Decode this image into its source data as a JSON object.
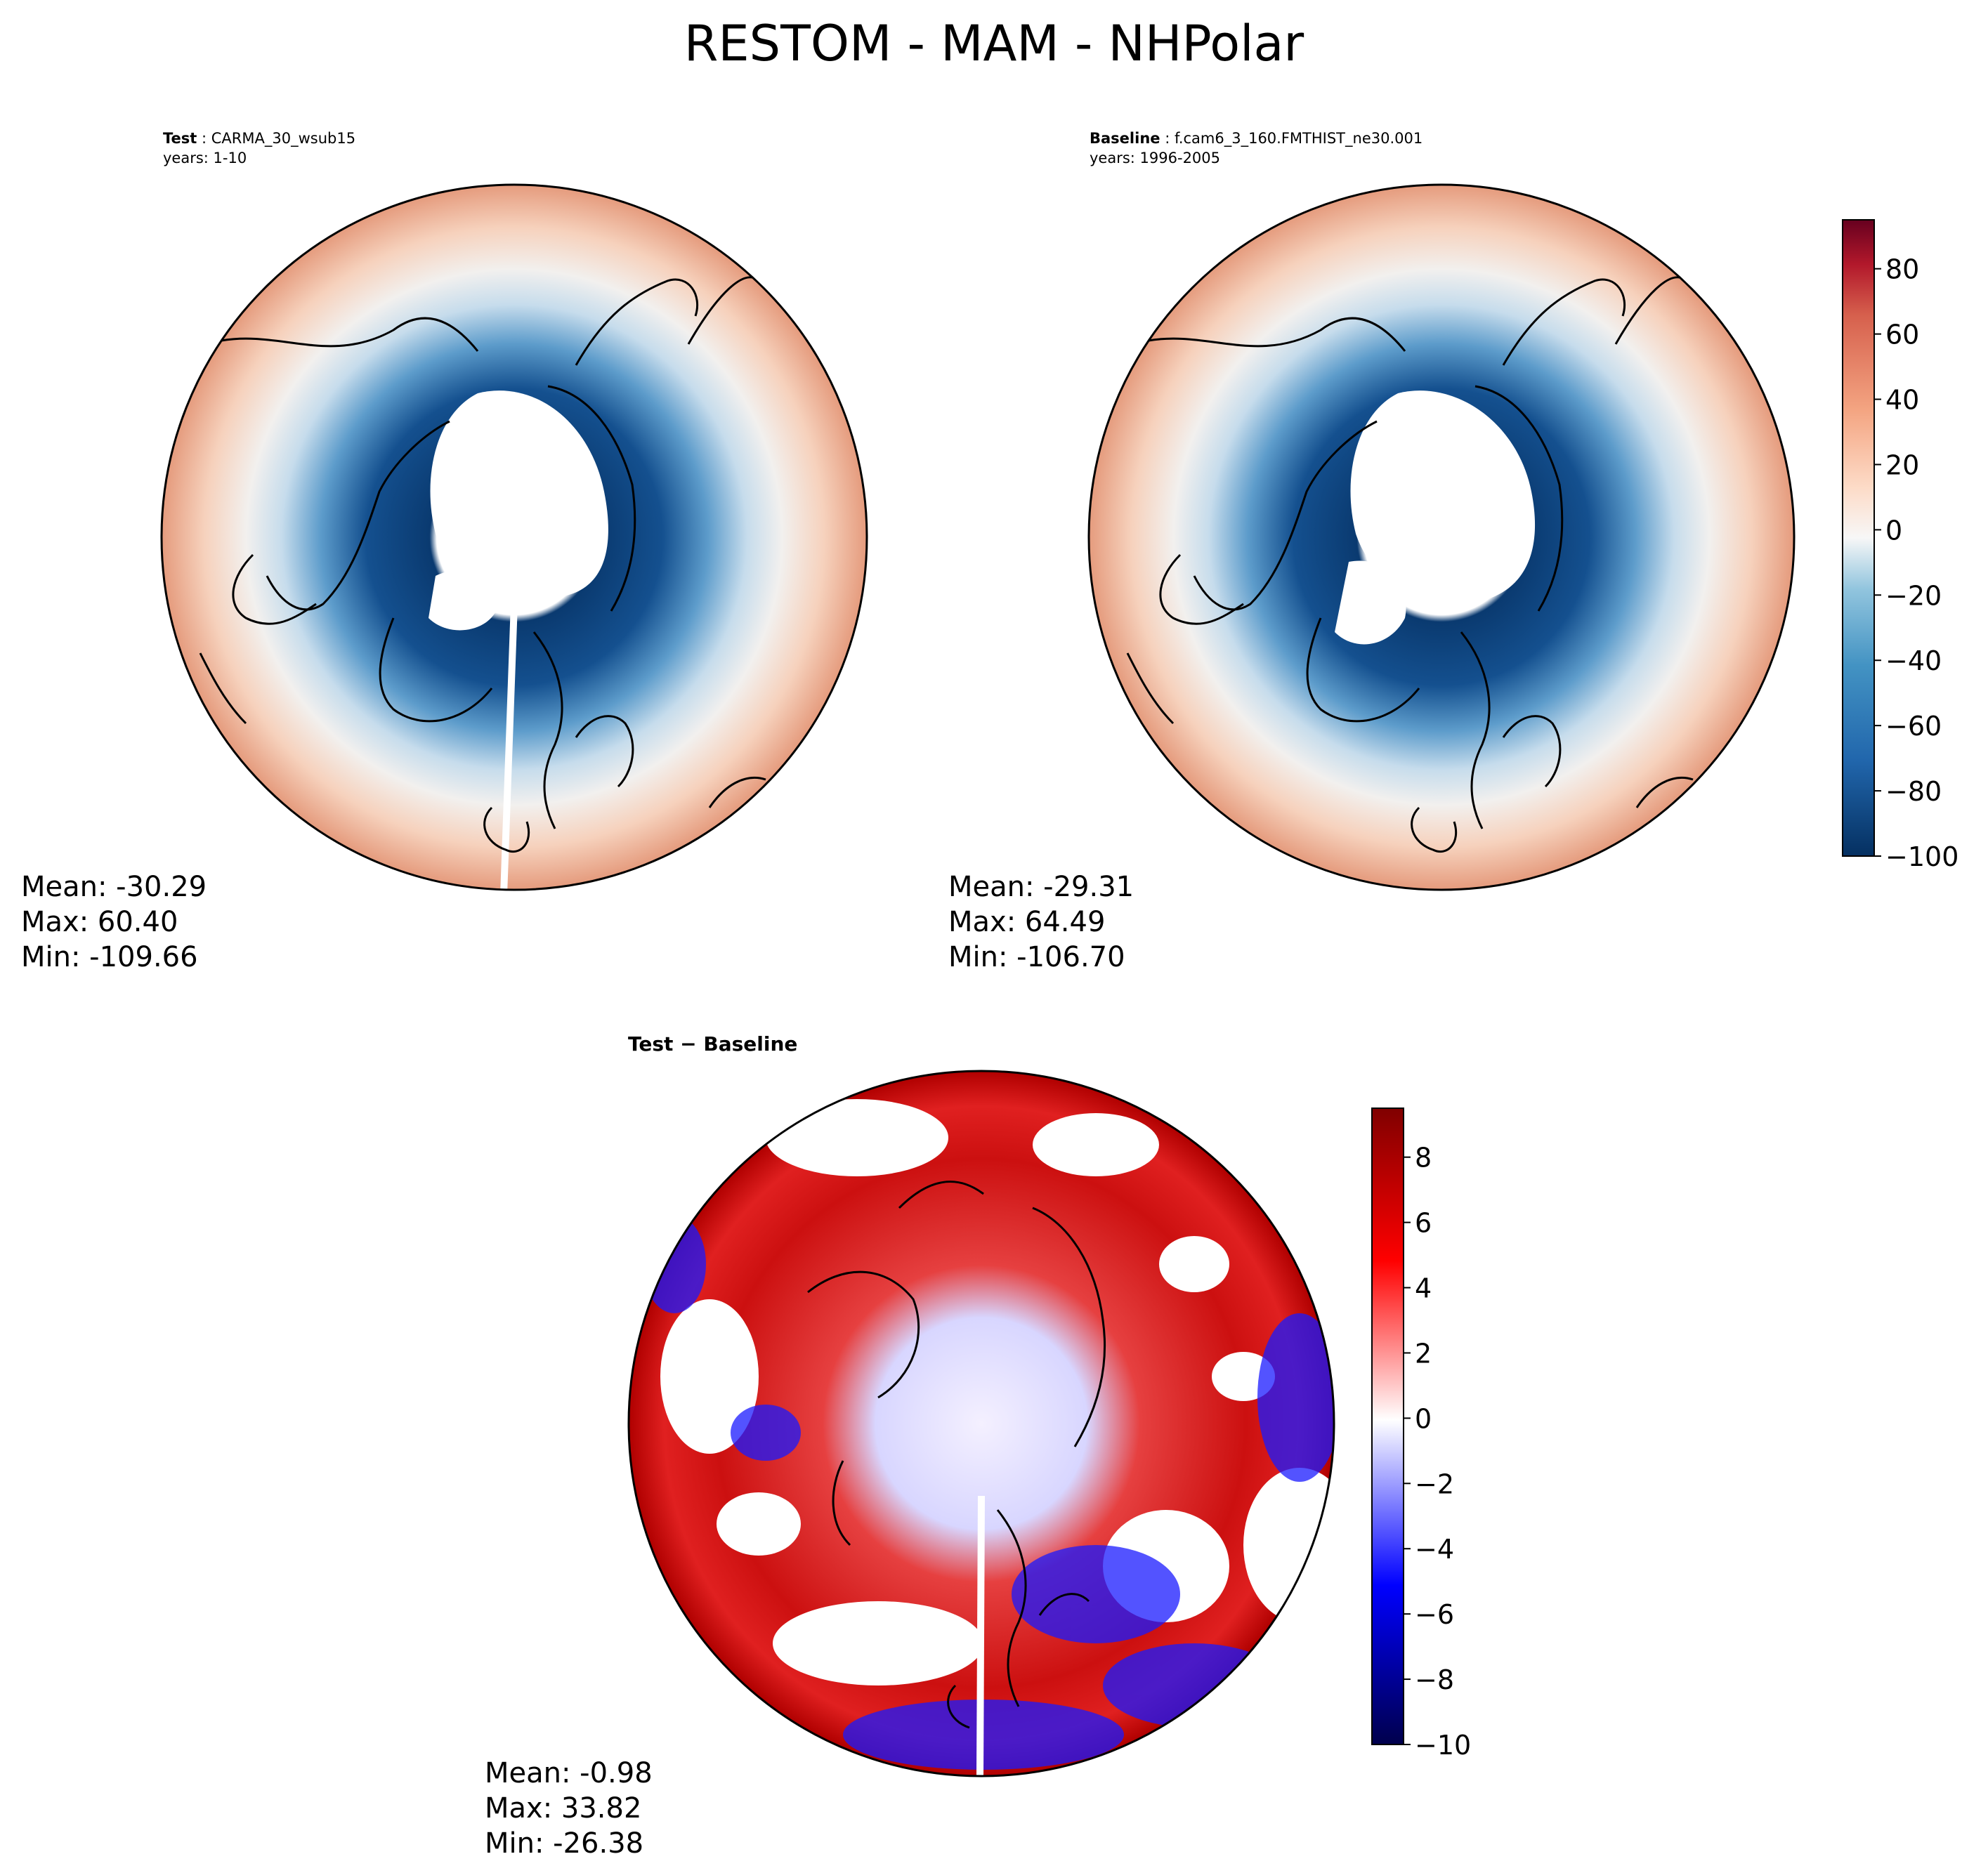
{
  "figure_title": "RESTOM - MAM - NHPolar",
  "chart_data": [
    {
      "type": "heatmap",
      "projection": "north-polar-stereographic",
      "panel": "test",
      "title_bold": "Test",
      "title_case": "CARMA_30_wsub15",
      "years_label": "years: 1-10",
      "colormap": "RdBu_r",
      "stats": {
        "mean_label": "Mean: -30.29",
        "max_label": "Max: 60.40",
        "min_label": "Min: -109.66"
      },
      "field_summary": [
        {
          "region": "pole (masked)",
          "value": null
        },
        {
          "region": "arctic ring",
          "value": -95
        },
        {
          "region": "subarctic",
          "value": -45
        },
        {
          "region": "mid-latitudes",
          "value": 0
        },
        {
          "region": "outer edge",
          "value": 30
        }
      ]
    },
    {
      "type": "heatmap",
      "projection": "north-polar-stereographic",
      "panel": "baseline",
      "title_bold": "Baseline",
      "title_case": "f.cam6_3_160.FMTHIST_ne30.001",
      "years_label": "years: 1996-2005",
      "colormap": "RdBu_r",
      "stats": {
        "mean_label": "Mean: -29.31",
        "max_label": "Max: 64.49",
        "min_label": "Min: -106.70"
      },
      "colorbar": {
        "vmin": -100,
        "vmax": 95,
        "ticks": [
          -100,
          -80,
          -60,
          -40,
          -20,
          0,
          20,
          40,
          60,
          80
        ],
        "tick_labels": [
          "−100",
          "−80",
          "−60",
          "−40",
          "−20",
          "0",
          "20",
          "40",
          "60",
          "80"
        ]
      },
      "field_summary": [
        {
          "region": "pole (masked)",
          "value": null
        },
        {
          "region": "arctic ring",
          "value": -95
        },
        {
          "region": "subarctic",
          "value": -45
        },
        {
          "region": "mid-latitudes",
          "value": 0
        },
        {
          "region": "outer edge",
          "value": 32
        }
      ]
    },
    {
      "type": "heatmap",
      "projection": "north-polar-stereographic",
      "panel": "difference",
      "title_bold": "Test − Baseline",
      "colormap": "seismic",
      "stats": {
        "mean_label": "Mean: -0.98",
        "max_label": "Max: 33.82",
        "min_label": "Min: -26.38"
      },
      "colorbar": {
        "vmin": -10,
        "vmax": 9.5,
        "ticks": [
          -10,
          -8,
          -6,
          -4,
          -2,
          0,
          2,
          4,
          6,
          8
        ],
        "tick_labels": [
          "−10",
          "−8",
          "−6",
          "−4",
          "−2",
          "0",
          "2",
          "4",
          "6",
          "8"
        ]
      }
    }
  ]
}
